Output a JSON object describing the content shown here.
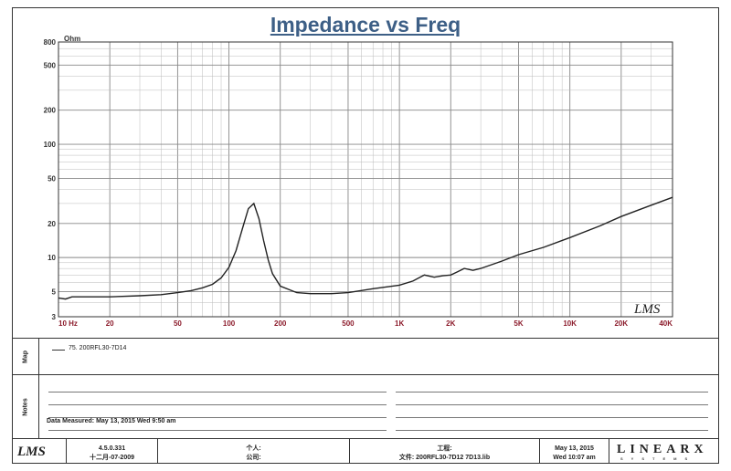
{
  "chart_data": {
    "type": "line",
    "title": "Impedance vs Freq",
    "ylabel": "Ohm",
    "xscale": "log",
    "yscale": "log",
    "xlim": [
      10,
      40000
    ],
    "ylim": [
      3,
      800
    ],
    "grid": true,
    "y_ticks": [
      3,
      5,
      10,
      20,
      50,
      100,
      200,
      500,
      800
    ],
    "y_tick_labels": [
      "3",
      "5",
      "10",
      "20",
      "50",
      "100",
      "200",
      "500",
      "800"
    ],
    "x_ticks": [
      10,
      20,
      50,
      100,
      200,
      500,
      1000,
      2000,
      5000,
      10000,
      20000,
      40000
    ],
    "x_tick_labels": [
      "10 Hz",
      "20",
      "50",
      "100",
      "200",
      "500",
      "1K",
      "2K",
      "5K",
      "10K",
      "20K",
      "40K"
    ],
    "watermark": "LMS",
    "series": [
      {
        "name": "75. 200RFL30-7D14",
        "color": "#222222",
        "x": [
          10,
          11,
          12,
          15,
          20,
          30,
          40,
          50,
          60,
          70,
          80,
          90,
          100,
          110,
          120,
          130,
          140,
          150,
          160,
          170,
          180,
          200,
          250,
          300,
          400,
          500,
          700,
          1000,
          1200,
          1400,
          1600,
          1800,
          2000,
          2200,
          2400,
          2700,
          3000,
          4000,
          5000,
          7000,
          10000,
          15000,
          20000,
          30000,
          40000
        ],
        "y": [
          4.4,
          4.3,
          4.5,
          4.5,
          4.5,
          4.6,
          4.7,
          4.9,
          5.1,
          5.4,
          5.8,
          6.6,
          8.2,
          11.5,
          18,
          27,
          30,
          22,
          14,
          9.5,
          7.2,
          5.6,
          4.9,
          4.8,
          4.8,
          4.9,
          5.3,
          5.7,
          6.2,
          7.0,
          6.7,
          6.9,
          7.0,
          7.5,
          8.0,
          7.7,
          8.0,
          9.3,
          10.6,
          12.3,
          15,
          19,
          23,
          29,
          34
        ]
      }
    ]
  },
  "side_labels": {
    "legend": "Map",
    "notes": "Notes"
  },
  "data_measured": "Data Measured: May 13, 2015   Wed  9:50 am",
  "footer": {
    "logo": "LMS",
    "version": "4.5.0.331",
    "build_date": "十二月-07-2009",
    "person": "个人:",
    "company": "公司:",
    "project": "工程:",
    "file": "文件: 200RFL30-7D12   7D13.lib",
    "date": "May 13, 2015",
    "time": "Wed 10:07 am",
    "brand": "LINEARX",
    "brand_sub": "SYSTEMS"
  }
}
